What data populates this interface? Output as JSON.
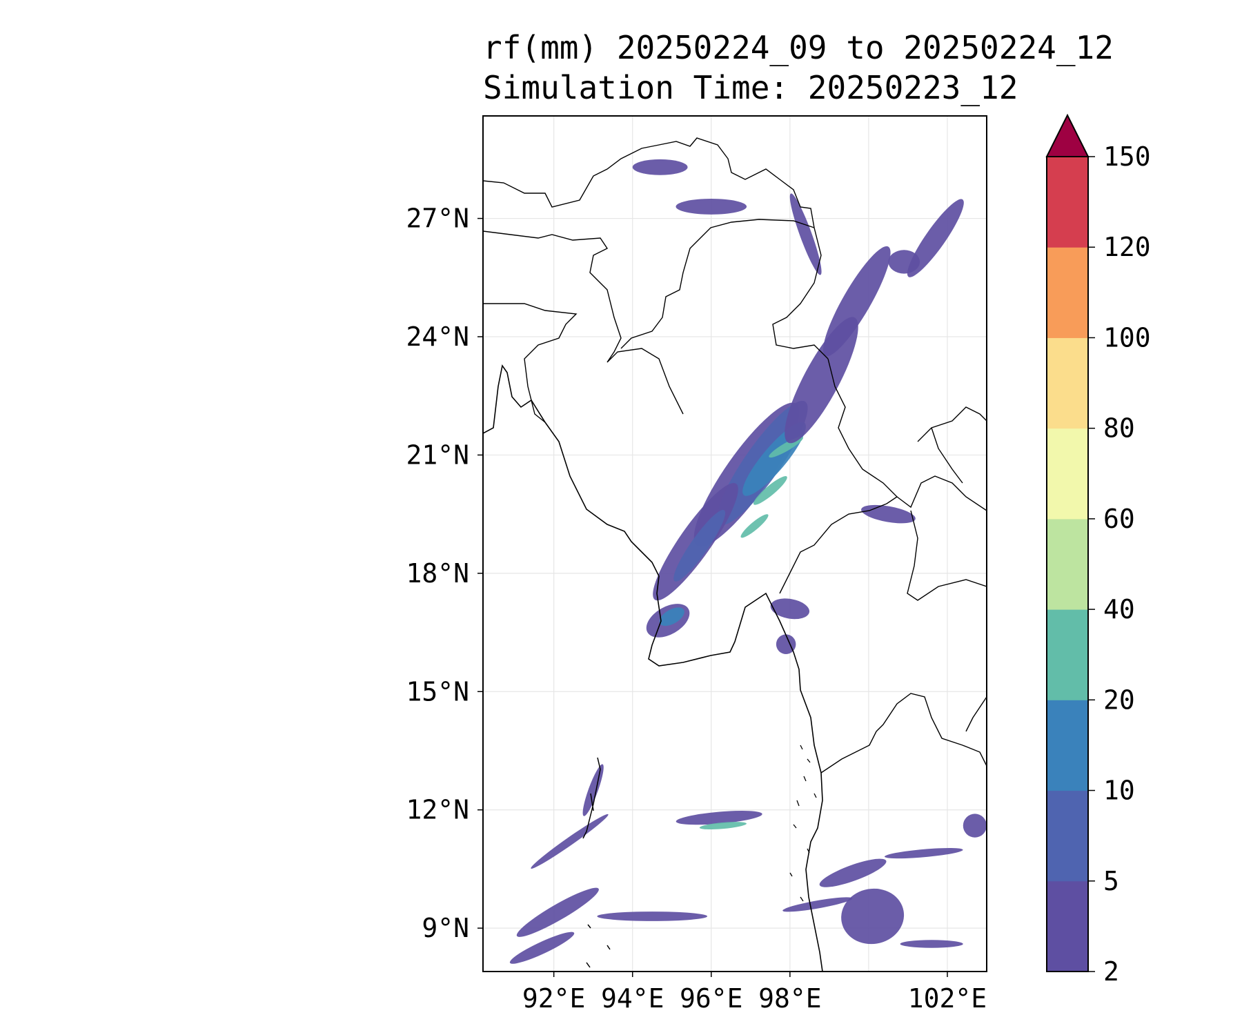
{
  "title": {
    "line1": "rf(mm) 20250224_09 to 20250224_12",
    "line2": "Simulation Time: 20250223_12"
  },
  "map": {
    "lon_range": [
      90.2,
      103.0
    ],
    "lat_range": [
      7.9,
      29.6
    ],
    "grid": true,
    "lat_ticks": [
      {
        "value": 27,
        "label": "27°N"
      },
      {
        "value": 24,
        "label": "24°N"
      },
      {
        "value": 21,
        "label": "21°N"
      },
      {
        "value": 18,
        "label": "18°N"
      },
      {
        "value": 15,
        "label": "15°N"
      },
      {
        "value": 12,
        "label": "12°N"
      },
      {
        "value": 9,
        "label": "9°N"
      }
    ],
    "lon_ticks": [
      {
        "value": 92,
        "label": "92°E"
      },
      {
        "value": 94,
        "label": "94°E"
      },
      {
        "value": 96,
        "label": "96°E"
      },
      {
        "value": 98,
        "label": "98°E"
      },
      {
        "value": 102,
        "label": "102°E"
      }
    ],
    "lon_gridlines": [
      92,
      94,
      96,
      98,
      100,
      102
    ],
    "lat_gridlines": [
      9,
      12,
      15,
      18,
      21,
      24,
      27
    ]
  },
  "colorbar": {
    "levels": [
      "2",
      "5",
      "10",
      "20",
      "40",
      "60",
      "80",
      "100",
      "120",
      "150"
    ],
    "colors": [
      "#5e4fa2",
      "#4f64b0",
      "#3a82bb",
      "#62bda9",
      "#bde4a0",
      "#f2f8ac",
      "#fbdd8c",
      "#f89c59",
      "#d53e4f"
    ],
    "extend_color": "#9e0142",
    "extend": "max"
  },
  "rain_cells": [
    {
      "lon": 96.9,
      "lat": 20.5,
      "rx": 2.2,
      "ry": 0.55,
      "rot": -55,
      "level": 0
    },
    {
      "lon": 97.3,
      "lat": 20.8,
      "rx": 1.9,
      "ry": 0.45,
      "rot": -55,
      "level": 1
    },
    {
      "lon": 97.6,
      "lat": 20.9,
      "rx": 1.2,
      "ry": 0.3,
      "rot": -50,
      "level": 2
    },
    {
      "lon": 97.5,
      "lat": 20.1,
      "rx": 0.55,
      "ry": 0.12,
      "rot": -40,
      "level": 3
    },
    {
      "lon": 97.9,
      "lat": 21.2,
      "rx": 0.5,
      "ry": 0.1,
      "rot": -30,
      "level": 3
    },
    {
      "lon": 97.1,
      "lat": 19.2,
      "rx": 0.45,
      "ry": 0.1,
      "rot": -40,
      "level": 3
    },
    {
      "lon": 95.6,
      "lat": 18.8,
      "rx": 1.8,
      "ry": 0.4,
      "rot": -55,
      "level": 0
    },
    {
      "lon": 95.7,
      "lat": 18.7,
      "rx": 1.1,
      "ry": 0.22,
      "rot": -55,
      "level": 1
    },
    {
      "lon": 94.9,
      "lat": 16.8,
      "rx": 0.6,
      "ry": 0.35,
      "rot": -30,
      "level": 0
    },
    {
      "lon": 95.0,
      "lat": 16.9,
      "rx": 0.35,
      "ry": 0.18,
      "rot": -30,
      "level": 2
    },
    {
      "lon": 98.8,
      "lat": 22.9,
      "rx": 1.8,
      "ry": 0.45,
      "rot": -62,
      "level": 0
    },
    {
      "lon": 99.7,
      "lat": 24.9,
      "rx": 1.6,
      "ry": 0.35,
      "rot": -60,
      "level": 0
    },
    {
      "lon": 101.7,
      "lat": 26.5,
      "rx": 1.2,
      "ry": 0.25,
      "rot": -55,
      "level": 0
    },
    {
      "lon": 100.9,
      "lat": 25.9,
      "rx": 0.4,
      "ry": 0.3,
      "rot": 0,
      "level": 0
    },
    {
      "lon": 98.4,
      "lat": 26.6,
      "rx": 1.1,
      "ry": 0.15,
      "rot": 70,
      "level": 0
    },
    {
      "lon": 96.0,
      "lat": 27.3,
      "rx": 0.9,
      "ry": 0.2,
      "rot": 0,
      "level": 0
    },
    {
      "lon": 94.7,
      "lat": 28.3,
      "rx": 0.7,
      "ry": 0.2,
      "rot": 0,
      "level": 0
    },
    {
      "lon": 98.0,
      "lat": 17.1,
      "rx": 0.5,
      "ry": 0.25,
      "rot": 10,
      "level": 0
    },
    {
      "lon": 97.9,
      "lat": 16.2,
      "rx": 0.25,
      "ry": 0.25,
      "rot": 0,
      "level": 0
    },
    {
      "lon": 100.5,
      "lat": 19.5,
      "rx": 0.7,
      "ry": 0.2,
      "rot": 10,
      "level": 0
    },
    {
      "lon": 96.2,
      "lat": 11.8,
      "rx": 1.1,
      "ry": 0.15,
      "rot": -5,
      "level": 0
    },
    {
      "lon": 96.3,
      "lat": 11.6,
      "rx": 0.6,
      "ry": 0.08,
      "rot": -5,
      "level": 3
    },
    {
      "lon": 94.5,
      "lat": 9.3,
      "rx": 1.4,
      "ry": 0.12,
      "rot": 0,
      "level": 0
    },
    {
      "lon": 92.1,
      "lat": 9.4,
      "rx": 1.2,
      "ry": 0.2,
      "rot": -30,
      "level": 0
    },
    {
      "lon": 91.7,
      "lat": 8.5,
      "rx": 0.9,
      "ry": 0.15,
      "rot": -25,
      "level": 0
    },
    {
      "lon": 92.4,
      "lat": 11.2,
      "rx": 1.2,
      "ry": 0.1,
      "rot": -35,
      "level": 0
    },
    {
      "lon": 93.0,
      "lat": 12.5,
      "rx": 0.7,
      "ry": 0.12,
      "rot": -70,
      "level": 0
    },
    {
      "lon": 100.1,
      "lat": 9.3,
      "rx": 0.8,
      "ry": 0.7,
      "rot": -10,
      "level": 0
    },
    {
      "lon": 99.6,
      "lat": 10.4,
      "rx": 0.9,
      "ry": 0.2,
      "rot": -20,
      "level": 0
    },
    {
      "lon": 101.6,
      "lat": 8.6,
      "rx": 0.8,
      "ry": 0.1,
      "rot": 0,
      "level": 0
    },
    {
      "lon": 101.4,
      "lat": 10.9,
      "rx": 1.0,
      "ry": 0.1,
      "rot": -5,
      "level": 0
    },
    {
      "lon": 102.7,
      "lat": 11.6,
      "rx": 0.3,
      "ry": 0.3,
      "rot": 0,
      "level": 0
    },
    {
      "lon": 98.7,
      "lat": 9.6,
      "rx": 0.9,
      "ry": 0.1,
      "rot": -10,
      "level": 0
    }
  ]
}
